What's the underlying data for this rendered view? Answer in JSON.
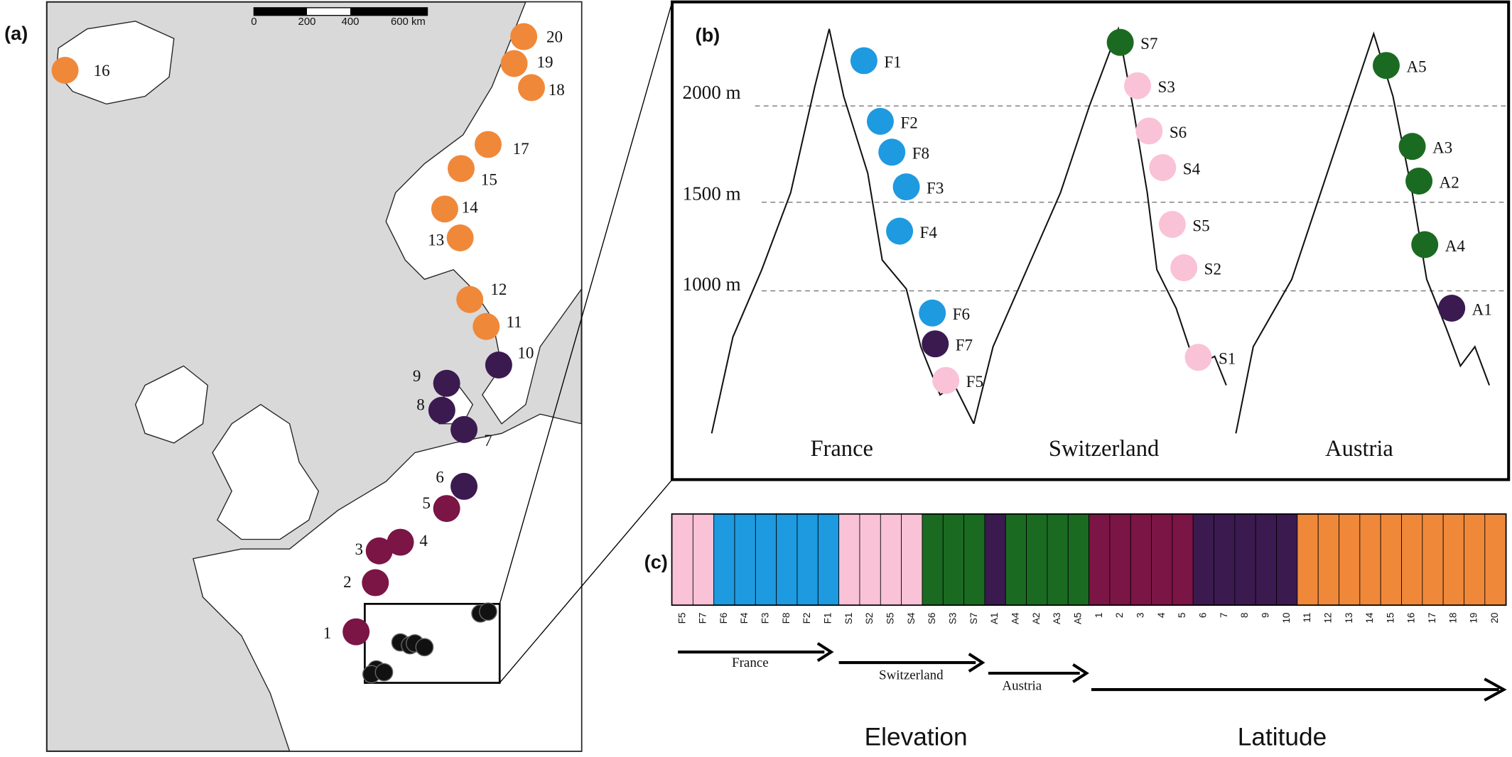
{
  "panel_a": {
    "label": "(a)",
    "scale_bar": [
      "0",
      "200",
      "400",
      "600 km"
    ],
    "sites": [
      "1",
      "2",
      "3",
      "4",
      "5",
      "6",
      "7",
      "8",
      "9",
      "10",
      "11",
      "12",
      "13",
      "14",
      "15",
      "16",
      "17",
      "18",
      "19",
      "20"
    ]
  },
  "panel_b": {
    "label": "(b)",
    "elevations": [
      "2000 m",
      "1500 m",
      "1000 m"
    ],
    "countries": [
      "France",
      "Switzerland",
      "Austria"
    ],
    "sites": [
      "F1",
      "F2",
      "F8",
      "F3",
      "F4",
      "F6",
      "F7",
      "F5",
      "S7",
      "S3",
      "S6",
      "S4",
      "S5",
      "S2",
      "S1",
      "A5",
      "A3",
      "A2",
      "A4",
      "A1"
    ]
  },
  "panel_c": {
    "label": "(c)",
    "populations": [
      "F5",
      "F7",
      "F6",
      "F4",
      "F3",
      "F8",
      "F2",
      "F1",
      "S1",
      "S2",
      "S5",
      "S4",
      "S6",
      "S3",
      "S7",
      "A1",
      "A4",
      "A2",
      "A3",
      "A5",
      "1",
      "2",
      "3",
      "4",
      "5",
      "6",
      "7",
      "8",
      "9",
      "10",
      "11",
      "12",
      "13",
      "14",
      "15",
      "16",
      "17",
      "18",
      "19",
      "20"
    ],
    "arrows": [
      "France",
      "Switzerland",
      "Austria"
    ],
    "gradients": [
      "Elevation",
      "Latitude"
    ]
  }
}
